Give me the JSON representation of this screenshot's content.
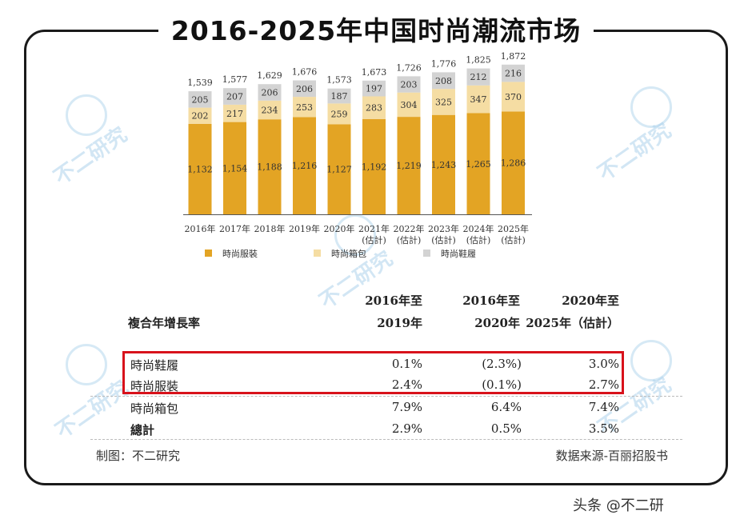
{
  "title": "2016-2025年中国时尚潮流市场",
  "chart_data": {
    "type": "bar",
    "stacked": true,
    "categories": [
      "2016年",
      "2017年",
      "2018年",
      "2019年",
      "2020年",
      "2021年",
      "2022年",
      "2023年",
      "2024年",
      "2025年"
    ],
    "category_sublabels": [
      "",
      "",
      "",
      "",
      "",
      "(估計)",
      "(估計)",
      "(估計)",
      "(估計)",
      "(估計)"
    ],
    "series": [
      {
        "name": "時尚服裝",
        "color": "#e3a424",
        "values": [
          1132,
          1154,
          1188,
          1216,
          1127,
          1192,
          1219,
          1243,
          1265,
          1286
        ]
      },
      {
        "name": "時尚箱包",
        "color": "#f5dda3",
        "values": [
          202,
          217,
          234,
          253,
          259,
          283,
          304,
          325,
          347,
          370
        ]
      },
      {
        "name": "時尚鞋履",
        "color": "#d3d3d3",
        "values": [
          205,
          207,
          206,
          206,
          187,
          197,
          203,
          208,
          212,
          216
        ]
      }
    ],
    "totals": [
      1539,
      1577,
      1629,
      1676,
      1573,
      1673,
      1726,
      1776,
      1825,
      1872
    ],
    "value_labels": {
      "s0": [
        "1,132",
        "1,154",
        "1,188",
        "1,216",
        "1,127",
        "1,192",
        "1,219",
        "1,243",
        "1,265",
        "1,286"
      ],
      "s1": [
        "202",
        "217",
        "234",
        "253",
        "259",
        "283",
        "304",
        "325",
        "347",
        "370"
      ],
      "s2": [
        "205",
        "207",
        "206",
        "206",
        "187",
        "197",
        "203",
        "208",
        "212",
        "216"
      ],
      "totals": [
        "1,539",
        "1,577",
        "1,629",
        "1,676",
        "1,573",
        "1,673",
        "1,726",
        "1,776",
        "1,825",
        "1,872"
      ]
    },
    "ylim": [
      0,
      1900
    ],
    "legend_position": "bottom-left",
    "grid": false
  },
  "cagr_table": {
    "row_header": "複合年增長率",
    "columns": [
      {
        "line1": "2016年至",
        "line2": "2019年"
      },
      {
        "line1": "2016年至",
        "line2": "2020年"
      },
      {
        "line1": "2020年至",
        "line2": "2025年（估計）"
      }
    ],
    "rows": [
      {
        "label": "時尚鞋履",
        "values": [
          "0.1%",
          "(2.3%)",
          "3.0%"
        ],
        "highlighted": true
      },
      {
        "label": "時尚服裝",
        "values": [
          "2.4%",
          "(0.1%)",
          "2.7%"
        ],
        "highlighted": true
      },
      {
        "label": "時尚箱包",
        "values": [
          "7.9%",
          "6.4%",
          "7.4%"
        ],
        "highlighted": false
      },
      {
        "label": "總計",
        "values": [
          "2.9%",
          "0.5%",
          "3.5%"
        ],
        "highlighted": false
      }
    ]
  },
  "footer": {
    "left": "制图：不二研究",
    "right": "数据来源-百丽招股书"
  },
  "watermark": "不二研究",
  "corner_text": "头条 @不二研"
}
